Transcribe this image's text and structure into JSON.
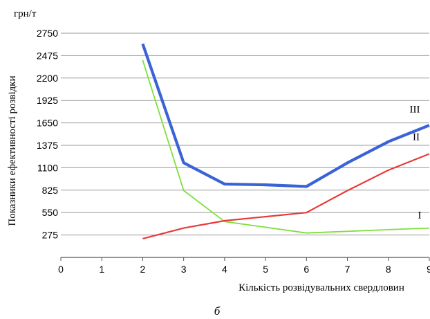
{
  "chart_data": {
    "type": "line",
    "unit_label": "грн/т",
    "xlabel": "Кількість розвідувальних свердловин",
    "ylabel": "Показники ефективності розвідки",
    "caption": "б",
    "xlim": [
      0,
      9
    ],
    "ylim": [
      0,
      2750
    ],
    "x_ticks": [
      0,
      1,
      2,
      3,
      4,
      5,
      6,
      7,
      8,
      9
    ],
    "y_ticks": [
      275,
      550,
      825,
      1100,
      1375,
      1650,
      1925,
      2200,
      2475,
      2750
    ],
    "grid": "horizontal",
    "series": [
      {
        "name": "I",
        "color": "#7ee03a",
        "x": [
          2,
          3,
          4,
          5,
          6,
          7,
          8,
          9
        ],
        "y": [
          2420,
          820,
          440,
          370,
          300,
          320,
          340,
          360
        ]
      },
      {
        "name": "II",
        "color": "#e83a3a",
        "x": [
          2,
          3,
          4,
          5,
          6,
          7,
          8,
          9
        ],
        "y": [
          230,
          360,
          450,
          500,
          550,
          820,
          1070,
          1270
        ]
      },
      {
        "name": "III",
        "color": "#3a63d8",
        "x": [
          2,
          3,
          4,
          5,
          6,
          7,
          8,
          9
        ],
        "y": [
          2620,
          1160,
          900,
          890,
          870,
          1160,
          1420,
          1620
        ]
      }
    ]
  }
}
